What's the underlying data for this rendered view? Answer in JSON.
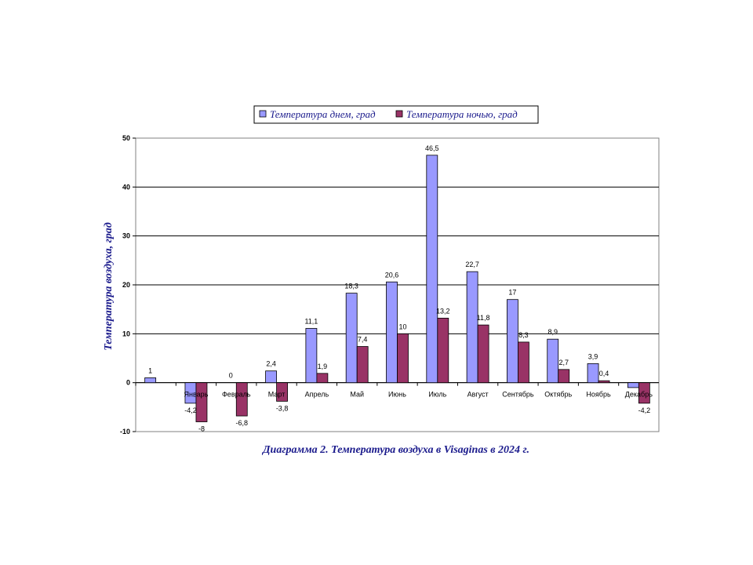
{
  "chart_data": {
    "type": "bar",
    "caption": "Диаграмма 2. Температура воздуха в Visaginas в 2024 г.",
    "ylabel": "Температура воздуха, град",
    "xlabel": "",
    "ylim": [
      -10,
      50
    ],
    "yticks": [
      -10,
      0,
      10,
      20,
      30,
      40,
      50
    ],
    "grid": true,
    "legend_position": "top",
    "categories": [
      "",
      "Январь",
      "Февраль",
      "Март",
      "Апрель",
      "Май",
      "Июнь",
      "Июль",
      "Август",
      "Сентябрь",
      "Октябрь",
      "Ноябрь",
      "Декабрь"
    ],
    "series": [
      {
        "name": "Температура днем, град",
        "color": "#9999ff",
        "values": [
          1,
          -4.2,
          null,
          2.4,
          11.1,
          18.3,
          20.6,
          46.5,
          22.7,
          17,
          8.9,
          3.9,
          -1
        ],
        "labels": [
          "1",
          "-4,2",
          "0",
          "2,4",
          "11,1",
          "18,3",
          "20,6",
          "46,5",
          "22,7",
          "17",
          "8,9",
          "3,9",
          ""
        ]
      },
      {
        "name": "Температура ночью, град",
        "color": "#993366",
        "values": [
          null,
          -8,
          -6.8,
          -3.8,
          1.9,
          7.4,
          10,
          13.2,
          11.8,
          8.3,
          2.7,
          0.4,
          -4.2
        ],
        "labels": [
          "",
          "-8",
          "-6,8",
          "-3,8",
          "1,9",
          "7,4",
          "10",
          "13,2",
          "11,8",
          "8,3",
          "2,7",
          "0,4",
          "-4,2"
        ]
      }
    ]
  }
}
